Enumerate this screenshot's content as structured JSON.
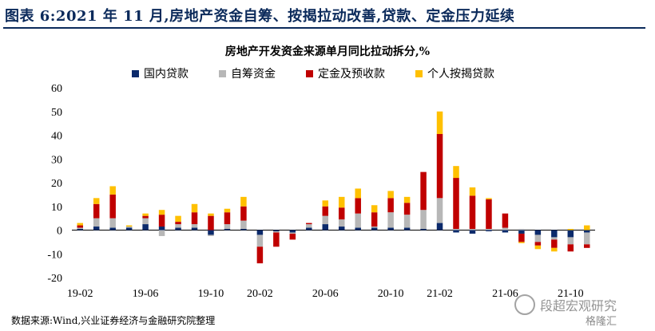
{
  "figure_title": "图表 6:2021 年 11 月,房地产资金自筹、按揭拉动改善,贷款、定金压力延续",
  "source_note": "数据来源:Wind,兴业证券经济与金融研究院整理",
  "watermark": {
    "text": "段超宏观研究",
    "secondary": "格隆汇"
  },
  "colors": {
    "title": "#0b2a5b"
  },
  "chart_data": {
    "type": "bar",
    "stacked": true,
    "title": "房地产开发资金来源单月同比拉动拆分,%",
    "legend_position": "top",
    "ylim": [
      -20,
      60
    ],
    "yticks": [
      -20,
      -10,
      0,
      10,
      20,
      30,
      40,
      50,
      60
    ],
    "x_tick_labels": [
      "19-02",
      "19-06",
      "19-10",
      "20-02",
      "20-06",
      "20-10",
      "21-02",
      "21-06",
      "21-10"
    ],
    "categories": [
      "19-02",
      "19-03",
      "19-04",
      "19-05",
      "19-06",
      "19-07",
      "19-08",
      "19-09",
      "19-10",
      "19-11",
      "19-12",
      "20-02",
      "20-03",
      "20-04",
      "20-05",
      "20-06",
      "20-07",
      "20-08",
      "20-09",
      "20-10",
      "20-11",
      "20-12",
      "21-02",
      "21-03",
      "21-04",
      "21-05",
      "21-06",
      "21-07",
      "21-08",
      "21-09",
      "21-10",
      "21-11"
    ],
    "series": [
      {
        "name": "国内贷款",
        "color": "#0b2a6b",
        "values": [
          0.5,
          1.5,
          1,
          1,
          2.5,
          1.5,
          1,
          1,
          -2,
          0.5,
          0.5,
          -2,
          -0.5,
          -1,
          1,
          2.5,
          1.5,
          1,
          1,
          1,
          1,
          0.5,
          3,
          -1,
          -1.5,
          -0.5,
          -1,
          -1.5,
          -2,
          -3,
          -3,
          -1
        ]
      },
      {
        "name": "自筹资金",
        "color": "#b7b7b7",
        "values": [
          0.5,
          3.5,
          4,
          0.5,
          2.5,
          -2.5,
          1.5,
          1.5,
          -0.5,
          2,
          3.5,
          -5,
          -0.5,
          -0.5,
          1.5,
          3.5,
          3,
          6,
          0.5,
          6.5,
          5.5,
          8,
          10.5,
          0.5,
          0.5,
          0.5,
          1,
          0.5,
          -3,
          -1,
          -3,
          -5
        ]
      },
      {
        "name": "定金及预收款",
        "color": "#c00000",
        "values": [
          1,
          6,
          10,
          0,
          1,
          5,
          1,
          5,
          6,
          5,
          6,
          -7,
          -6,
          -2.5,
          0.5,
          4,
          5,
          6.5,
          6,
          6,
          5,
          16,
          27,
          21.5,
          14,
          12.5,
          6,
          -3.5,
          -1.5,
          -3.5,
          -3,
          -1.5
        ]
      },
      {
        "name": "个人按揭贷款",
        "color": "#ffc000",
        "values": [
          1,
          2.5,
          3.5,
          0.5,
          1,
          2,
          2.5,
          3.5,
          1,
          1.5,
          4,
          0,
          0,
          0,
          0,
          2.5,
          4.5,
          4,
          3,
          3,
          2.5,
          0,
          9.5,
          5,
          3.5,
          0.5,
          0,
          -0.5,
          -1.5,
          -1.5,
          0.5,
          2
        ]
      }
    ]
  }
}
